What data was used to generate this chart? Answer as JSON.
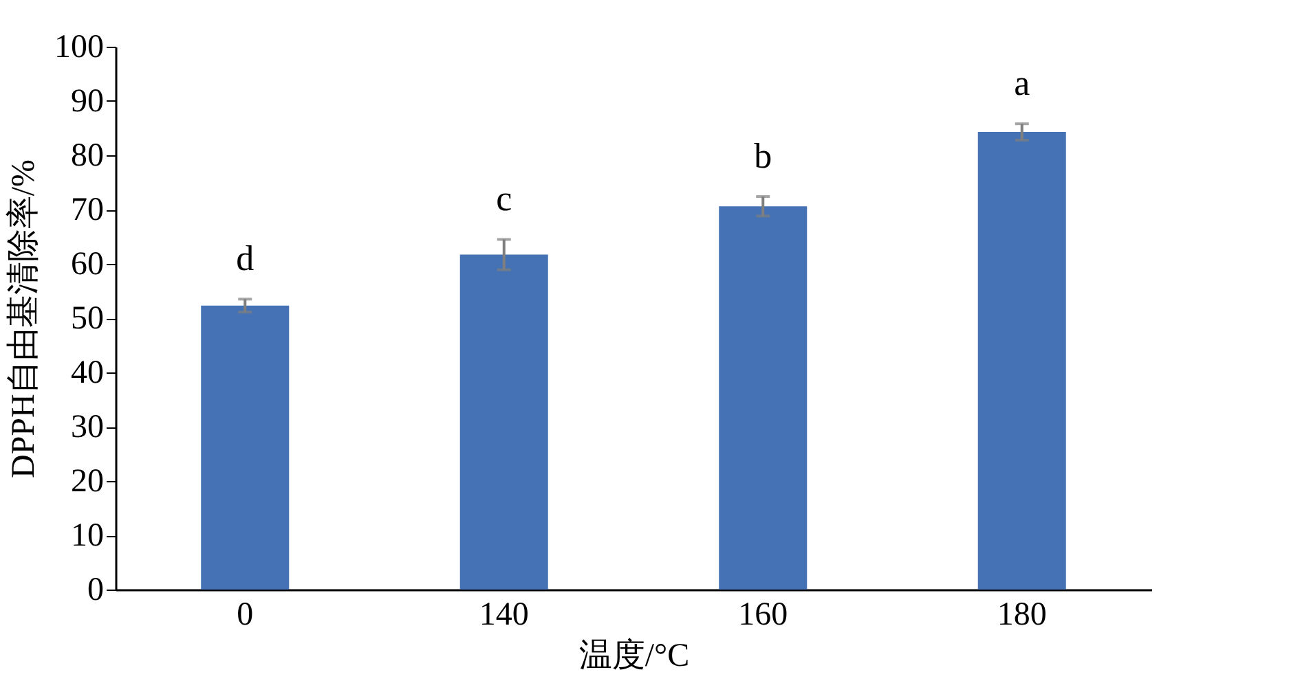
{
  "chart_data": {
    "type": "bar",
    "xlabel": "温度/°C",
    "ylabel": "DPPH自由基清除率/%",
    "categories": [
      "0",
      "140",
      "160",
      "180"
    ],
    "series": [
      {
        "color": "#4472b4",
        "values": [
          52.3,
          61.7,
          70.6,
          84.3
        ],
        "errors": [
          1.2,
          2.8,
          1.8,
          1.5
        ]
      }
    ],
    "ylim": [
      0,
      100
    ],
    "yticks": [
      0,
      10,
      20,
      30,
      40,
      50,
      60,
      70,
      80,
      90,
      100
    ],
    "grid": false,
    "annotations": [
      {
        "text": "d",
        "x": "0",
        "y": 53.5
      },
      {
        "text": "c",
        "x": "140",
        "y": 64.5
      },
      {
        "text": "b",
        "x": "160",
        "y": 72.4
      },
      {
        "text": "a",
        "x": "180",
        "y": 85.8
      }
    ]
  }
}
